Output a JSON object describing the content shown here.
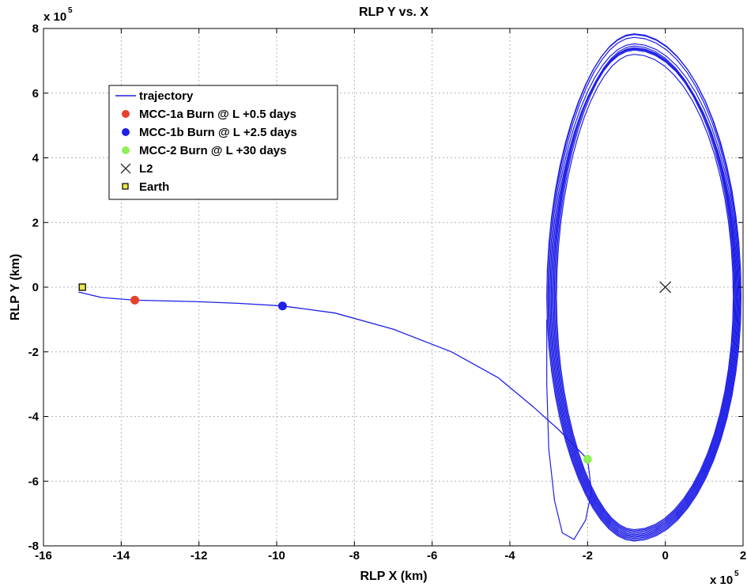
{
  "chart_data": {
    "type": "line",
    "title": "RLP Y vs. X",
    "xlabel": "RLP X (km)",
    "ylabel": "RLP Y (km)",
    "x_multiplier": "x 10",
    "x_multiplier_exp": "5",
    "y_multiplier": "x 10",
    "y_multiplier_exp": "5",
    "xlim": [
      -16,
      2
    ],
    "ylim": [
      -8,
      8
    ],
    "x_ticks": [
      "-16",
      "-14",
      "-12",
      "-10",
      "-8",
      "-6",
      "-4",
      "-2",
      "0",
      "2"
    ],
    "y_ticks": [
      "-8",
      "-6",
      "-4",
      "-2",
      "0",
      "2",
      "4",
      "6",
      "8"
    ],
    "x_tick_values": [
      -16,
      -14,
      -12,
      -10,
      -8,
      -6,
      -4,
      -2,
      0,
      2
    ],
    "y_tick_values": [
      -8,
      -6,
      -4,
      -2,
      0,
      2,
      4,
      6,
      8
    ],
    "grid": true,
    "legend_position": "top-left",
    "series": [
      {
        "name": "trajectory",
        "style": "line",
        "color": "#1f1fe6",
        "transfer": [
          [
            -15.1,
            -0.15
          ],
          [
            -14.5,
            -0.32
          ],
          [
            -13.65,
            -0.4
          ],
          [
            -12.0,
            -0.45
          ],
          [
            -11.0,
            -0.5
          ],
          [
            -9.85,
            -0.58
          ],
          [
            -8.5,
            -0.8
          ],
          [
            -7.0,
            -1.3
          ],
          [
            -5.5,
            -2.0
          ],
          [
            -4.3,
            -2.8
          ],
          [
            -3.4,
            -3.7
          ],
          [
            -2.75,
            -4.4
          ],
          [
            -2.3,
            -4.95
          ],
          [
            -2.0,
            -5.32
          ]
        ],
        "orbit_center": [
          -0.8,
          -0.3
        ],
        "orbit_x_range": [
          -3.05,
          1.95
        ],
        "orbit_y_range": [
          -7.85,
          7.9
        ],
        "revolutions": 10
      },
      {
        "name": "MCC-1a Burn @ L +0.5 days",
        "style": "marker",
        "color": "#e8402a",
        "x": -13.65,
        "y": -0.4
      },
      {
        "name": "MCC-1b Burn @ L +2.5 days",
        "style": "marker",
        "color": "#1f1fe6",
        "x": -9.85,
        "y": -0.58
      },
      {
        "name": "MCC-2 Burn @ L +30 days",
        "style": "marker",
        "color": "#8ff05a",
        "x": -2.0,
        "y": -5.32
      },
      {
        "name": "L2",
        "style": "cross",
        "color": "#333333",
        "x": 0,
        "y": 0
      },
      {
        "name": "Earth",
        "style": "square",
        "color": "#e8e84a",
        "x": -15.0,
        "y": 0.0
      }
    ]
  }
}
